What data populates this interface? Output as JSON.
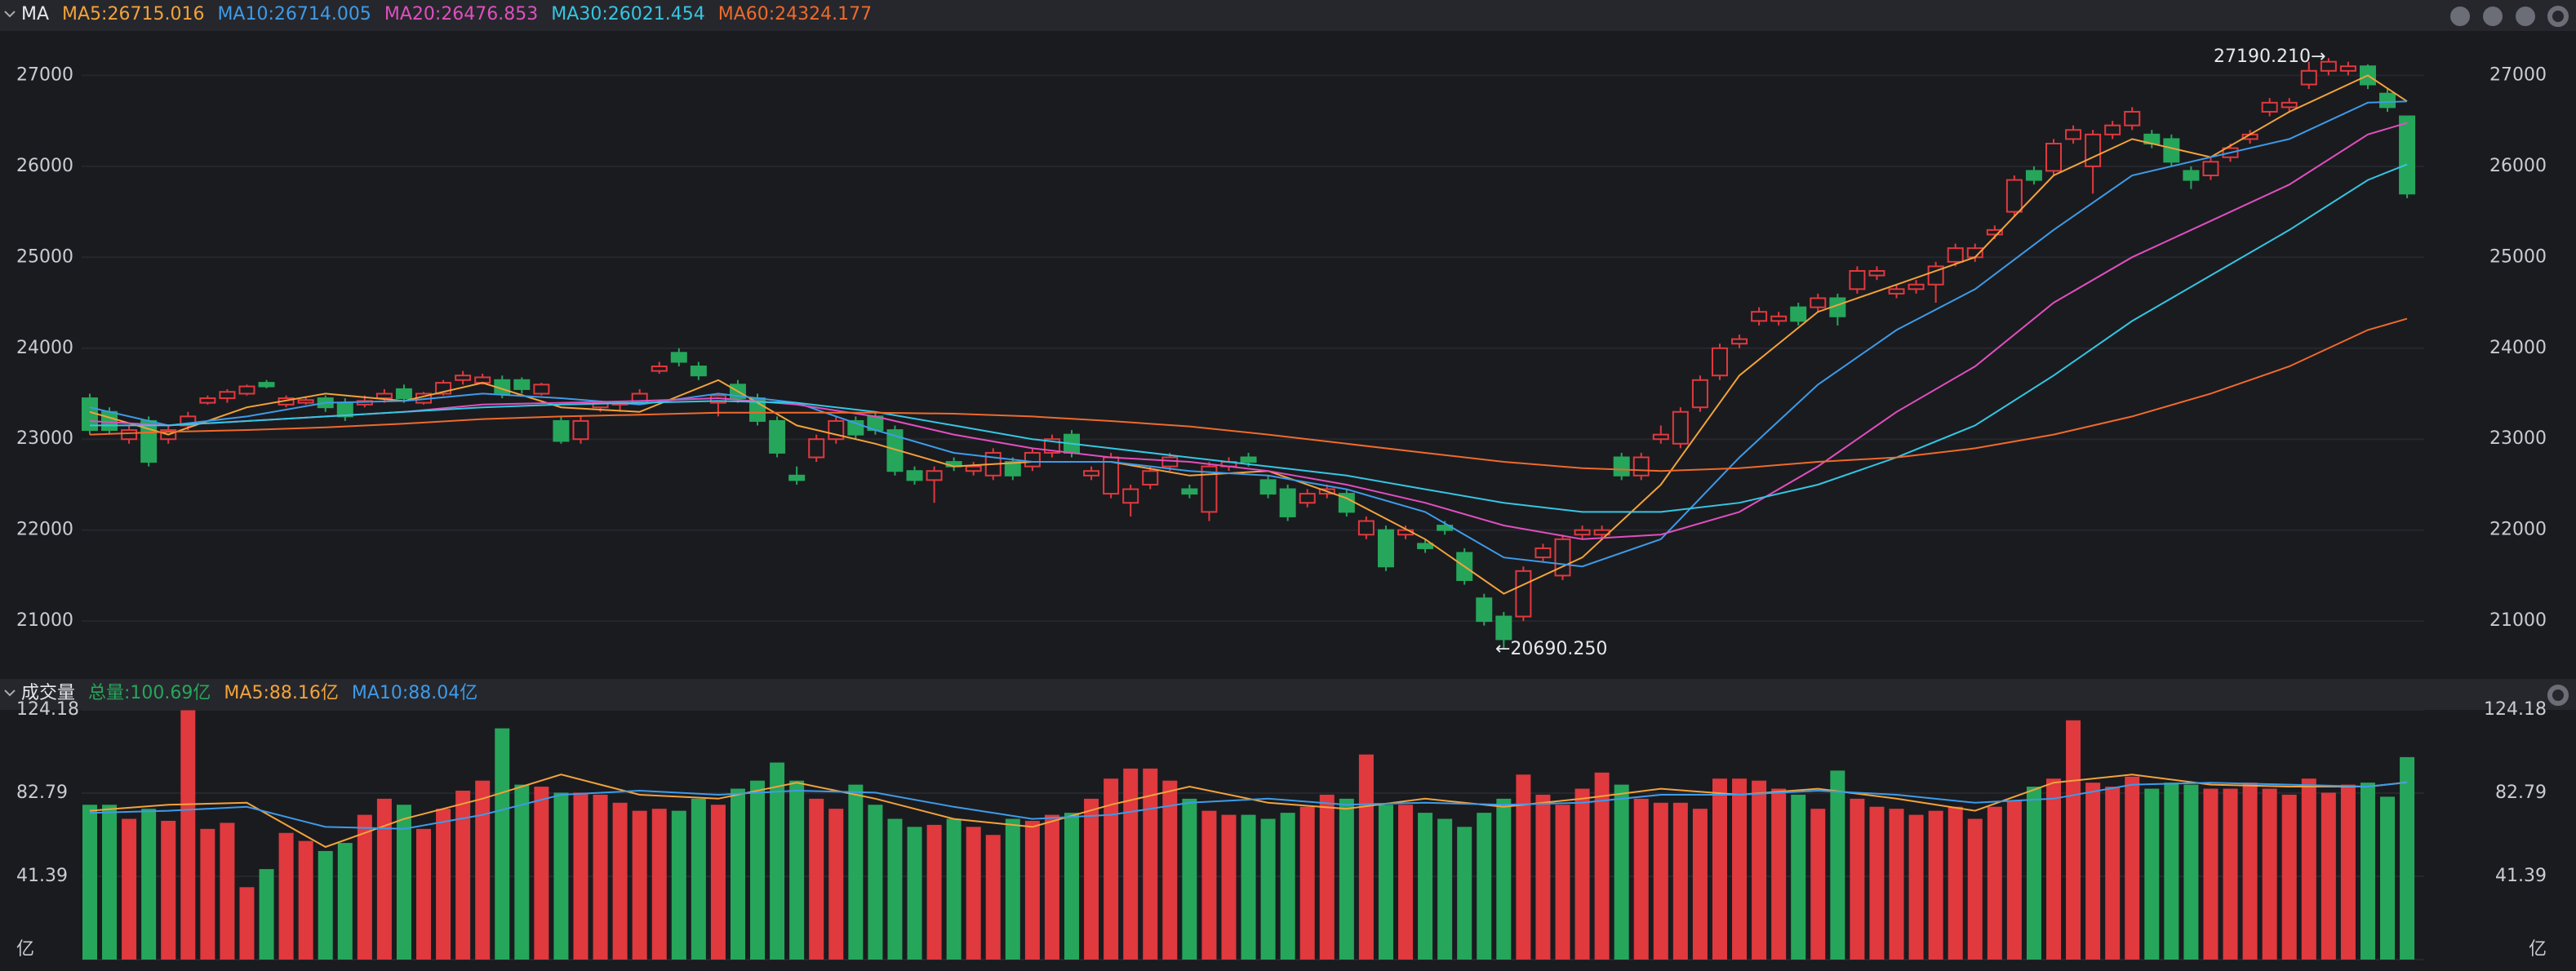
{
  "chart_data": [
    {
      "type": "candlestick",
      "title": "MA",
      "up_color": "#e0393e",
      "down_color": "#26a65b",
      "grid": true,
      "ylim": [
        20400,
        27470
      ],
      "yticks": [
        21000,
        22000,
        23000,
        24000,
        25000,
        26000,
        27000
      ],
      "open": [
        23450,
        23300,
        23000,
        23200,
        23000,
        23150,
        23400,
        23450,
        23500,
        23620,
        23380,
        23400,
        23450,
        23400,
        23380,
        23450,
        23550,
        23400,
        23500,
        23650,
        23620,
        23650,
        23650,
        23500,
        23200,
        23000,
        23350,
        23380,
        23400,
        23750,
        23950,
        23800,
        23400,
        23600,
        23450,
        23200,
        22600,
        22800,
        23000,
        23200,
        23250,
        23100,
        22650,
        22550,
        22750,
        22650,
        22600,
        22750,
        22700,
        22850,
        23050,
        22600,
        22400,
        22300,
        22500,
        22700,
        22450,
        22200,
        22700,
        22800,
        22550,
        22450,
        22300,
        22400,
        22400,
        21950,
        22000,
        21950,
        21850,
        22050,
        21750,
        21250,
        21050,
        21050,
        21700,
        21500,
        21950,
        21950,
        22800,
        22600,
        23000,
        22950,
        23350,
        23700,
        24050,
        24300,
        24300,
        24450,
        24450,
        24550,
        24650,
        24800,
        24600,
        24650,
        24700,
        24950,
        25000,
        25250,
        25500,
        25950,
        25950,
        26300,
        26000,
        26350,
        26450,
        26350,
        26300,
        25950,
        25900,
        26100,
        26300,
        26600,
        26650,
        26900,
        27050,
        27050,
        27100,
        26800,
        26550
      ],
      "high": [
        23500,
        23350,
        23150,
        23250,
        23150,
        23300,
        23480,
        23550,
        23600,
        23650,
        23480,
        23470,
        23480,
        23450,
        23480,
        23550,
        23600,
        23520,
        23650,
        23750,
        23720,
        23700,
        23680,
        23620,
        23250,
        23250,
        23420,
        23420,
        23550,
        23850,
        24000,
        23850,
        23500,
        23650,
        23500,
        23250,
        22700,
        23050,
        23250,
        23250,
        23300,
        23150,
        22700,
        22700,
        22800,
        22750,
        22900,
        22800,
        22900,
        23050,
        23100,
        22700,
        22850,
        22500,
        22700,
        22850,
        22500,
        22750,
        22800,
        22850,
        22600,
        22500,
        22450,
        22500,
        22450,
        22150,
        22050,
        22050,
        21900,
        22100,
        21800,
        21300,
        21100,
        21600,
        21850,
        21950,
        22050,
        22050,
        22850,
        22850,
        23150,
        23350,
        23700,
        24050,
        24150,
        24450,
        24400,
        24500,
        24600,
        24600,
        24900,
        24900,
        24700,
        24750,
        24950,
        25150,
        25150,
        25350,
        25900,
        26000,
        26300,
        26450,
        26400,
        26500,
        26650,
        26400,
        26350,
        26000,
        26100,
        26250,
        26400,
        26750,
        26750,
        27150,
        27190.21,
        27150,
        27120,
        26850,
        26550
      ],
      "low": [
        23050,
        23050,
        22950,
        22700,
        22950,
        23100,
        23380,
        23400,
        23480,
        23560,
        23350,
        23380,
        23300,
        23200,
        23350,
        23400,
        23400,
        23380,
        23480,
        23600,
        23600,
        23450,
        23500,
        23480,
        22950,
        22950,
        23300,
        23300,
        23380,
        23720,
        23800,
        23650,
        23250,
        23400,
        23150,
        22800,
        22500,
        22750,
        22950,
        23000,
        23050,
        22600,
        22500,
        22300,
        22650,
        22600,
        22550,
        22550,
        22650,
        22800,
        22800,
        22550,
        22350,
        22150,
        22450,
        22650,
        22350,
        22100,
        22650,
        22700,
        22350,
        22100,
        22250,
        22350,
        22150,
        21900,
        21550,
        21900,
        21750,
        21950,
        21400,
        20950,
        20690.25,
        21000,
        21650,
        21450,
        21900,
        21900,
        22550,
        22550,
        22950,
        22900,
        23300,
        23650,
        24000,
        24250,
        24250,
        24250,
        24400,
        24250,
        24600,
        24750,
        24550,
        24600,
        24500,
        24900,
        24950,
        25200,
        25450,
        25800,
        25900,
        26250,
        25700,
        26300,
        26400,
        26200,
        26000,
        25750,
        25850,
        26050,
        26250,
        26550,
        26600,
        26850,
        27000,
        27000,
        26850,
        26600,
        25650
      ],
      "close": [
        23100,
        23100,
        23100,
        22750,
        23100,
        23250,
        23450,
        23520,
        23580,
        23580,
        23450,
        23430,
        23350,
        23250,
        23420,
        23500,
        23450,
        23500,
        23620,
        23700,
        23680,
        23500,
        23550,
        23600,
        22980,
        23200,
        23400,
        23400,
        23500,
        23800,
        23850,
        23700,
        23480,
        23450,
        23200,
        22850,
        22550,
        23000,
        23200,
        23050,
        23100,
        22650,
        22550,
        22650,
        22700,
        22700,
        22850,
        22600,
        22850,
        23000,
        22850,
        22650,
        22800,
        22450,
        22650,
        22800,
        22400,
        22700,
        22750,
        22750,
        22400,
        22150,
        22400,
        22450,
        22200,
        22100,
        21600,
        22000,
        21800,
        22000,
        21450,
        21000,
        20800,
        21550,
        21800,
        21900,
        22000,
        22000,
        22600,
        22800,
        23050,
        23300,
        23650,
        24000,
        24100,
        24400,
        24350,
        24300,
        24550,
        24350,
        24850,
        24850,
        24650,
        24700,
        24900,
        25100,
        25100,
        25300,
        25850,
        25850,
        26250,
        26400,
        26350,
        26450,
        26600,
        26250,
        26050,
        25850,
        26050,
        26200,
        26350,
        26700,
        26700,
        27050,
        27150,
        27100,
        26900,
        26650,
        25700
      ],
      "lines": [
        {
          "name": "MA5:26715.016",
          "color": "#f2a33a",
          "x": [
            0,
            4,
            8,
            12,
            16,
            20,
            24,
            28,
            32,
            36,
            40,
            44,
            48,
            52,
            56,
            60,
            64,
            68,
            72,
            76,
            80,
            84,
            88,
            92,
            96,
            100,
            104,
            108,
            112,
            116,
            118
          ],
          "values": [
            23300,
            23050,
            23350,
            23500,
            23420,
            23620,
            23350,
            23300,
            23650,
            23150,
            22950,
            22700,
            22750,
            22750,
            22600,
            22650,
            22350,
            21900,
            21300,
            21700,
            22500,
            23700,
            24400,
            24700,
            25000,
            25900,
            26300,
            26100,
            26600,
            27000,
            26715.016
          ]
        },
        {
          "name": "MA10:26714.005",
          "color": "#3d9be9",
          "x": [
            0,
            4,
            8,
            12,
            16,
            20,
            24,
            28,
            32,
            36,
            40,
            44,
            48,
            52,
            56,
            60,
            64,
            68,
            72,
            76,
            80,
            84,
            88,
            92,
            96,
            100,
            104,
            108,
            112,
            116,
            118
          ],
          "values": [
            23350,
            23150,
            23250,
            23400,
            23420,
            23500,
            23450,
            23380,
            23500,
            23400,
            23100,
            22850,
            22750,
            22750,
            22650,
            22600,
            22450,
            22200,
            21700,
            21600,
            21900,
            22800,
            23600,
            24200,
            24650,
            25300,
            25900,
            26100,
            26300,
            26700,
            26714.005
          ]
        },
        {
          "name": "MA20:26476.853",
          "color": "#e04fbf",
          "x": [
            0,
            4,
            8,
            12,
            16,
            20,
            24,
            28,
            32,
            36,
            40,
            44,
            48,
            52,
            56,
            60,
            64,
            68,
            72,
            76,
            80,
            84,
            88,
            92,
            96,
            100,
            104,
            108,
            112,
            116,
            118
          ],
          "values": [
            23200,
            23150,
            23200,
            23250,
            23300,
            23380,
            23400,
            23420,
            23450,
            23380,
            23250,
            23050,
            22900,
            22800,
            22750,
            22650,
            22500,
            22300,
            22050,
            21900,
            21950,
            22200,
            22700,
            23300,
            23800,
            24500,
            25000,
            25400,
            25800,
            26350,
            26476.853
          ]
        },
        {
          "name": "MA30:26021.454",
          "color": "#35c6e3",
          "x": [
            0,
            4,
            8,
            12,
            16,
            20,
            24,
            28,
            32,
            36,
            40,
            44,
            48,
            52,
            56,
            60,
            64,
            68,
            72,
            76,
            80,
            84,
            88,
            92,
            96,
            100,
            104,
            108,
            112,
            116,
            118
          ],
          "values": [
            23150,
            23150,
            23200,
            23250,
            23300,
            23350,
            23380,
            23400,
            23420,
            23400,
            23300,
            23150,
            23000,
            22900,
            22800,
            22700,
            22600,
            22450,
            22300,
            22200,
            22200,
            22300,
            22500,
            22800,
            23150,
            23700,
            24300,
            24800,
            25300,
            25850,
            26021.454
          ]
        },
        {
          "name": "MA60:24324.177",
          "color": "#ef6a2c",
          "x": [
            0,
            4,
            8,
            12,
            16,
            20,
            24,
            28,
            32,
            36,
            40,
            44,
            48,
            52,
            56,
            60,
            64,
            68,
            72,
            76,
            80,
            84,
            88,
            92,
            96,
            100,
            104,
            108,
            112,
            116,
            118
          ],
          "values": [
            23050,
            23080,
            23100,
            23130,
            23170,
            23220,
            23250,
            23270,
            23290,
            23290,
            23290,
            23280,
            23250,
            23200,
            23140,
            23050,
            22950,
            22850,
            22750,
            22680,
            22650,
            22680,
            22750,
            22800,
            22900,
            23050,
            23250,
            23500,
            23800,
            24200,
            24324.177
          ]
        }
      ],
      "annotations": [
        "27190.210→",
        "←20690.250"
      ]
    },
    {
      "type": "bar",
      "title": "成交量",
      "subtitle": "总量:100.69亿",
      "grid": true,
      "ylim": [
        0,
        124.18
      ],
      "yticks": [
        {
          "value": 0,
          "label": "亿"
        },
        41.39,
        82.79,
        124.18
      ],
      "values": [
        77,
        77,
        70,
        75,
        69,
        124,
        65,
        68,
        36,
        45,
        63,
        59,
        54,
        58,
        72,
        80,
        77,
        65,
        75,
        84,
        89,
        115,
        87,
        86,
        83,
        83,
        82,
        78,
        74,
        75,
        74,
        80,
        77,
        85,
        89,
        98,
        89,
        80,
        75,
        87,
        77,
        70,
        66,
        67,
        70,
        66,
        62,
        70,
        69,
        72,
        73,
        80,
        90,
        95,
        95,
        89,
        80,
        74,
        72,
        72,
        70,
        73,
        76,
        82,
        80,
        102,
        77,
        77,
        73,
        70,
        66,
        73,
        80,
        92,
        82,
        77,
        85,
        93,
        87,
        80,
        78,
        78,
        75,
        90,
        90,
        89,
        85,
        82,
        75,
        94,
        80,
        76,
        75,
        72,
        74,
        76,
        70,
        76,
        79,
        86,
        90,
        119,
        88,
        86,
        91,
        85,
        88,
        87,
        85,
        85,
        88,
        85,
        82,
        90,
        83,
        87,
        88,
        81,
        100.69
      ],
      "lines": [
        {
          "name": "MA5:88.16亿",
          "color": "#f2a33a",
          "x": [
            0,
            4,
            8,
            12,
            16,
            20,
            24,
            28,
            32,
            36,
            40,
            44,
            48,
            52,
            56,
            60,
            64,
            68,
            72,
            76,
            80,
            84,
            88,
            92,
            96,
            100,
            104,
            108,
            112,
            116,
            118
          ],
          "values": [
            74,
            77,
            78,
            56,
            70,
            80,
            92,
            82,
            80,
            88,
            80,
            70,
            66,
            77,
            86,
            78,
            75,
            80,
            76,
            80,
            85,
            82,
            85,
            80,
            74,
            88,
            92,
            87,
            86,
            86,
            88.16
          ]
        },
        {
          "name": "MA10:88.04亿",
          "color": "#3d9be9",
          "x": [
            0,
            4,
            8,
            12,
            16,
            20,
            24,
            28,
            32,
            36,
            40,
            44,
            48,
            52,
            56,
            60,
            64,
            68,
            72,
            76,
            80,
            84,
            88,
            92,
            96,
            100,
            104,
            108,
            112,
            116,
            118
          ],
          "values": [
            73,
            74,
            76,
            66,
            65,
            72,
            82,
            84,
            82,
            84,
            83,
            76,
            70,
            72,
            78,
            80,
            77,
            78,
            77,
            78,
            82,
            82,
            84,
            82,
            78,
            80,
            87,
            88,
            87,
            86,
            88.04
          ]
        }
      ]
    }
  ]
}
